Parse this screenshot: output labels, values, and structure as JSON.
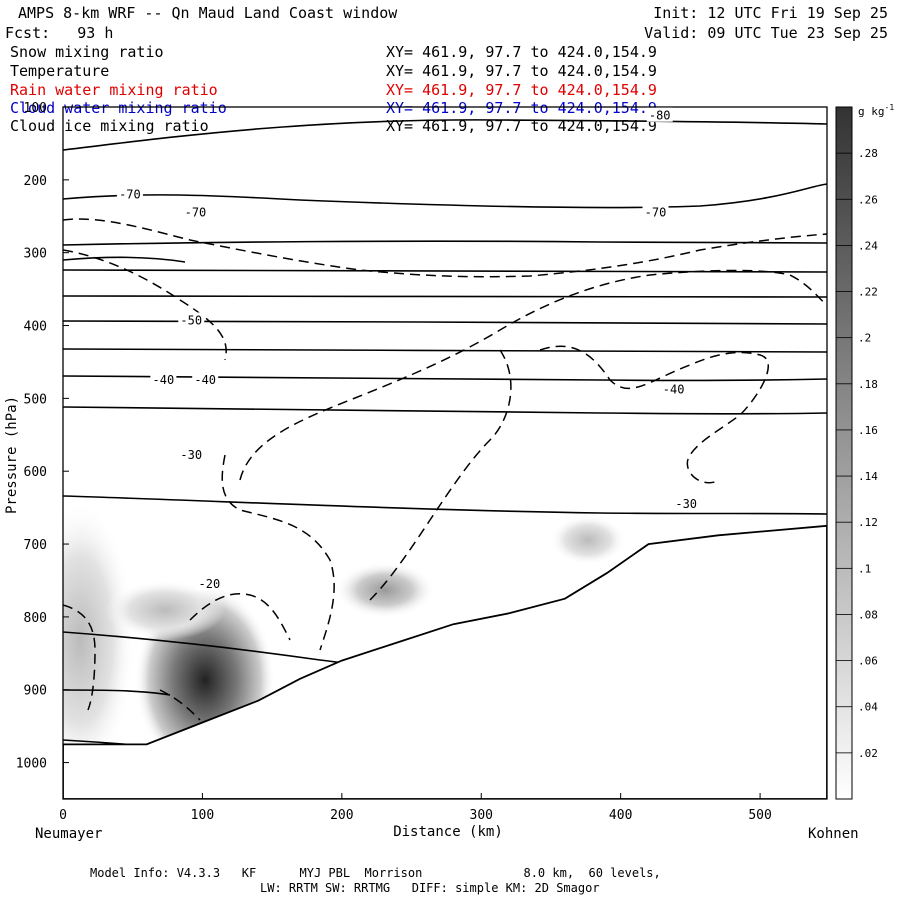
{
  "header": {
    "title": "AMPS 8-km WRF -- Qn Maud Land Coast window",
    "init": "Init: 12 UTC Fri 19 Sep 25",
    "fcst": "Fcst:   93 h",
    "valid": "Valid: 09 UTC Tue 23 Sep 25"
  },
  "fields": [
    {
      "name": "Snow mixing ratio",
      "xy": "XY= 461.9, 97.7 to 424.0,154.9",
      "color": "#000000"
    },
    {
      "name": "Temperature",
      "xy": "XY= 461.9, 97.7 to 424.0,154.9",
      "color": "#000000"
    },
    {
      "name": "Rain water mixing ratio",
      "xy": "XY= 461.9, 97.7 to 424.0,154.9",
      "color": "#e00000"
    },
    {
      "name": "Cloud water mixing ratio",
      "xy": "XY= 461.9, 97.7 to 424.0,154.9",
      "color": "#0000c8"
    },
    {
      "name": "Cloud ice mixing ratio",
      "xy": "XY= 461.9, 97.7 to 424.0,154.9",
      "color": "#000000"
    }
  ],
  "footer": {
    "line1": "Model Info: V4.3.3   KF      MYJ PBL  Morrison              8.0 km,  60 levels,",
    "line2": "LW: RRTM SW: RRTMG   DIFF: simple KM: 2D Smagor"
  },
  "chart_data": {
    "type": "cross-section",
    "xlabel": "Distance (km)",
    "ylabel": "Pressure (hPa)",
    "xlim": [
      0,
      548
    ],
    "ylim": [
      1050,
      100
    ],
    "xticks": [
      0,
      100,
      200,
      300,
      400,
      500
    ],
    "yticks": [
      100,
      200,
      300,
      400,
      500,
      600,
      700,
      800,
      900,
      1000
    ],
    "left_endpoint": "Neumayer",
    "right_endpoint": "Kohnen",
    "colorbar": {
      "unit": "g kg",
      "unit_exp": "-1",
      "ticks": [
        ".02",
        ".04",
        ".06",
        ".08",
        ".1",
        ".12",
        ".14",
        ".16",
        ".18",
        ".2",
        ".22",
        ".24",
        ".26",
        ".28"
      ],
      "range": [
        0,
        0.3
      ]
    },
    "temperature_labels": [
      {
        "text": "-70",
        "x": 48,
        "p": 220
      },
      {
        "text": "-70",
        "x": 95,
        "p": 245
      },
      {
        "text": "-70",
        "x": 425,
        "p": 245
      },
      {
        "text": "-80",
        "x": 428,
        "p": 112
      },
      {
        "text": "-50",
        "x": 92,
        "p": 393
      },
      {
        "text": "-40",
        "x": 72,
        "p": 475
      },
      {
        "text": "-40",
        "x": 102,
        "p": 475
      },
      {
        "text": "-40",
        "x": 438,
        "p": 488
      },
      {
        "text": "-30",
        "x": 92,
        "p": 578
      },
      {
        "text": "-30",
        "x": 447,
        "p": 645
      },
      {
        "text": "-20",
        "x": 105,
        "p": 755
      }
    ],
    "terrain": [
      [
        0,
        975
      ],
      [
        60,
        975
      ],
      [
        100,
        945
      ],
      [
        140,
        915
      ],
      [
        170,
        885
      ],
      [
        200,
        860
      ],
      [
        240,
        835
      ],
      [
        280,
        810
      ],
      [
        320,
        795
      ],
      [
        360,
        775
      ],
      [
        390,
        740
      ],
      [
        420,
        700
      ],
      [
        470,
        688
      ],
      [
        548,
        675
      ]
    ]
  }
}
